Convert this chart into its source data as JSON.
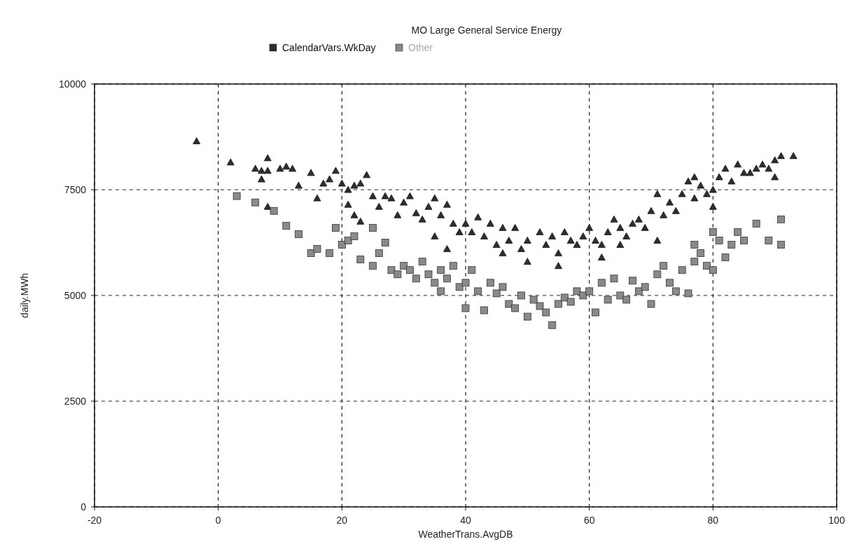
{
  "chart_data": {
    "type": "scatter",
    "title": "MO Large General Service Energy",
    "xlabel": "WeatherTrans.AvgDB",
    "ylabel": "daily.MWh",
    "xlim": [
      -20,
      100
    ],
    "xticks": [
      -20,
      0,
      20,
      40,
      60,
      80,
      100
    ],
    "ylim": [
      0,
      10000
    ],
    "yticks": [
      0,
      2500,
      5000,
      7500,
      10000
    ],
    "grid": true,
    "legend": "top",
    "series": [
      {
        "name": "CalendarVars.WkDay",
        "color": "#2e2e2e",
        "marker": "triangle",
        "x": [
          -3.5,
          2,
          6,
          7,
          8,
          8,
          7,
          8,
          10,
          11,
          12,
          13,
          15,
          16,
          17,
          18,
          19,
          20,
          21,
          21,
          22,
          23,
          24,
          25,
          22,
          23,
          26,
          27,
          28,
          29,
          30,
          31,
          32,
          33,
          34,
          35,
          36,
          37,
          38,
          35,
          37,
          39,
          40,
          41,
          42,
          43,
          44,
          45,
          46,
          47,
          48,
          49,
          50,
          50,
          52,
          53,
          54,
          55,
          55,
          56,
          57,
          58,
          59,
          60,
          61,
          62,
          62,
          63,
          64,
          65,
          66,
          67,
          68,
          69,
          70,
          71,
          72,
          73,
          74,
          75,
          76,
          77,
          77,
          78,
          79,
          80,
          80,
          81,
          82,
          83,
          84,
          85,
          86,
          87,
          88,
          89,
          90,
          90,
          91,
          93,
          71,
          65,
          46
        ],
        "values": [
          8650,
          8150,
          8000,
          7950,
          8250,
          7950,
          7750,
          7100,
          8000,
          8050,
          8000,
          7600,
          7900,
          7300,
          7650,
          7750,
          7950,
          7650,
          7500,
          7150,
          7600,
          7650,
          7850,
          7350,
          6900,
          6750,
          7100,
          7350,
          7300,
          6900,
          7200,
          7350,
          6950,
          6800,
          7100,
          7300,
          6900,
          7150,
          6700,
          6400,
          6100,
          6500,
          6700,
          6500,
          6850,
          6400,
          6700,
          6200,
          6600,
          6300,
          6600,
          6100,
          6300,
          5800,
          6500,
          6200,
          6400,
          6000,
          5700,
          6500,
          6300,
          6200,
          6400,
          6600,
          6300,
          6200,
          5900,
          6500,
          6800,
          6600,
          6400,
          6700,
          6800,
          6600,
          7000,
          7400,
          6900,
          7200,
          7000,
          7400,
          7700,
          7300,
          7800,
          7600,
          7400,
          7500,
          7100,
          7800,
          8000,
          7700,
          8100,
          7900,
          7900,
          8000,
          8100,
          8000,
          8200,
          7800,
          8300,
          8300,
          6300,
          6200,
          6000
        ]
      },
      {
        "name": "Other",
        "color": "#8a8a8a",
        "marker": "square",
        "x": [
          3,
          6,
          9,
          11,
          13,
          15,
          16,
          18,
          19,
          20,
          21,
          22,
          23,
          25,
          25,
          26,
          27,
          28,
          29,
          30,
          31,
          32,
          33,
          34,
          35,
          36,
          36,
          37,
          38,
          39,
          40,
          40,
          41,
          42,
          43,
          44,
          45,
          46,
          47,
          48,
          49,
          50,
          51,
          52,
          53,
          54,
          55,
          56,
          57,
          58,
          59,
          60,
          61,
          62,
          63,
          64,
          65,
          66,
          67,
          68,
          69,
          70,
          71,
          72,
          73,
          74,
          75,
          76,
          77,
          78,
          79,
          80,
          81,
          82,
          83,
          84,
          85,
          87,
          89,
          91,
          91,
          77,
          80
        ],
        "values": [
          7350,
          7200,
          7000,
          6650,
          6450,
          6000,
          6100,
          6000,
          6600,
          6200,
          6300,
          6400,
          5850,
          6600,
          5700,
          6000,
          6250,
          5600,
          5500,
          5700,
          5600,
          5400,
          5800,
          5500,
          5300,
          5600,
          5100,
          5400,
          5700,
          5200,
          4700,
          5300,
          5600,
          5100,
          4650,
          5300,
          5050,
          5200,
          4800,
          4700,
          5000,
          4500,
          4900,
          4750,
          4600,
          4300,
          4800,
          4950,
          4850,
          5100,
          5000,
          5100,
          4600,
          5300,
          4900,
          5400,
          5000,
          4900,
          5350,
          5100,
          5200,
          4800,
          5500,
          5700,
          5300,
          5100,
          5600,
          5050,
          5800,
          6000,
          5700,
          5600,
          6300,
          5900,
          6200,
          6500,
          6300,
          6700,
          6300,
          6800,
          6200,
          6200,
          6500
        ]
      }
    ]
  }
}
